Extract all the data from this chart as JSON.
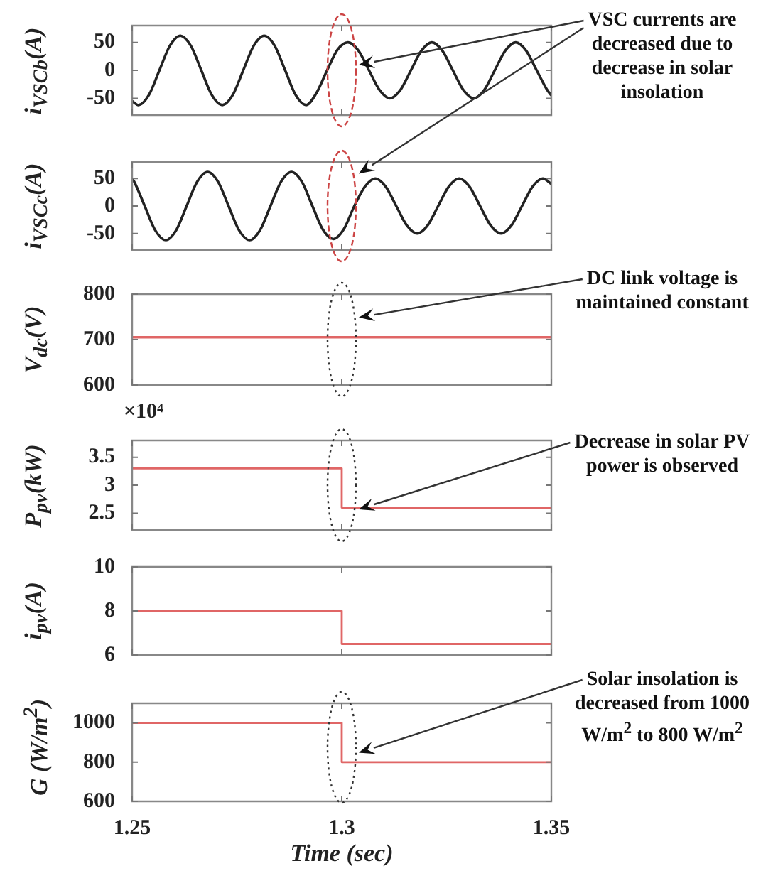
{
  "chart_data": [
    {
      "type": "line",
      "ylabel": "i$_{VSCb}$(A)",
      "xlim": [
        1.25,
        1.35
      ],
      "xticks": [
        1.25,
        1.3,
        1.35
      ],
      "ylim": [
        -80,
        80
      ],
      "yticks": [
        -50,
        0,
        50
      ],
      "tick_labels": "y",
      "color": "#222222",
      "x": [
        1.25,
        1.2515,
        1.254,
        1.2565,
        1.259,
        1.2615,
        1.264,
        1.2665,
        1.269,
        1.2715,
        1.274,
        1.2765,
        1.279,
        1.2815,
        1.284,
        1.2865,
        1.289,
        1.2915,
        1.294,
        1.2965,
        1.299,
        1.3015,
        1.304,
        1.3065,
        1.309,
        1.3115,
        1.314,
        1.3165,
        1.319,
        1.3215,
        1.324,
        1.3265,
        1.329,
        1.3315,
        1.334,
        1.3365,
        1.339,
        1.3415,
        1.344,
        1.3465,
        1.349,
        1.35
      ],
      "values": [
        -55,
        -62,
        -44,
        0,
        44,
        62,
        44,
        0,
        -44,
        -62,
        -44,
        0,
        44,
        62,
        44,
        0,
        -44,
        -62,
        -40,
        0,
        37,
        50,
        35,
        0,
        -35,
        -50,
        -35,
        0,
        35,
        50,
        35,
        0,
        -35,
        -50,
        -35,
        0,
        35,
        50,
        35,
        0,
        -35,
        -45
      ],
      "annotations": [
        "VSC currents are decreased due to decrease in solar insolation"
      ]
    },
    {
      "type": "line",
      "ylabel": "i$_{VSCc}$(A)",
      "xlim": [
        1.25,
        1.35
      ],
      "xticks": [
        1.25,
        1.3,
        1.35
      ],
      "ylim": [
        -80,
        80
      ],
      "yticks": [
        -50,
        0,
        50
      ],
      "tick_labels": "y",
      "color": "#222222",
      "x": [
        1.25,
        1.2505,
        1.253,
        1.2555,
        1.258,
        1.2605,
        1.263,
        1.2655,
        1.268,
        1.2705,
        1.273,
        1.2755,
        1.278,
        1.2805,
        1.283,
        1.2855,
        1.288,
        1.2905,
        1.293,
        1.2955,
        1.298,
        1.3005,
        1.303,
        1.3055,
        1.308,
        1.3105,
        1.313,
        1.3155,
        1.318,
        1.3205,
        1.323,
        1.3255,
        1.328,
        1.3305,
        1.333,
        1.3355,
        1.338,
        1.3405,
        1.343,
        1.3455,
        1.348,
        1.35
      ],
      "values": [
        50,
        44,
        0,
        -44,
        -62,
        -44,
        0,
        44,
        62,
        44,
        0,
        -44,
        -62,
        -44,
        0,
        44,
        62,
        44,
        0,
        -43,
        -60,
        -42,
        0,
        35,
        50,
        35,
        0,
        -35,
        -50,
        -35,
        0,
        35,
        50,
        35,
        0,
        -35,
        -50,
        -35,
        0,
        35,
        50,
        40
      ]
    },
    {
      "type": "line",
      "ylabel": "V$_{dc}$(V)",
      "xlim": [
        1.25,
        1.35
      ],
      "xticks": [
        1.25,
        1.3,
        1.35
      ],
      "ylim": [
        600,
        800
      ],
      "yticks": [
        600,
        700,
        800
      ],
      "tick_labels": "y",
      "color": "#e06666",
      "x": [
        1.25,
        1.35
      ],
      "values": [
        705,
        705
      ],
      "annotations": [
        "DC link voltage is maintained constant"
      ]
    },
    {
      "type": "step",
      "ylabel": "P$_{pv}$(kW)",
      "xlim": [
        1.25,
        1.35
      ],
      "xticks": [
        1.25,
        1.3,
        1.35
      ],
      "ylim": [
        2.2,
        3.8
      ],
      "yticks": [
        2.5,
        3,
        3.5
      ],
      "tick_labels": "y",
      "color": "#e06666",
      "x": [
        1.25,
        1.3,
        1.35
      ],
      "values": [
        3.3,
        2.6,
        2.6
      ],
      "annotations": [
        "×10⁴",
        "Decrease in solar PV power is observed"
      ]
    },
    {
      "type": "step",
      "ylabel": "i$_{pv}$(A)",
      "xlim": [
        1.25,
        1.35
      ],
      "xticks": [
        1.25,
        1.3,
        1.35
      ],
      "ylim": [
        6,
        10
      ],
      "yticks": [
        6,
        8,
        10
      ],
      "tick_labels": "y",
      "color": "#e06666",
      "x": [
        1.25,
        1.3,
        1.35
      ],
      "values": [
        8,
        6.5,
        6.5
      ]
    },
    {
      "type": "step",
      "ylabel": "G (W/m$^{2}$)",
      "xlabel": "Time (sec)",
      "xlim": [
        1.25,
        1.35
      ],
      "xticks": [
        1.25,
        1.3,
        1.35
      ],
      "ylim": [
        600,
        1100
      ],
      "yticks": [
        600,
        800,
        1000
      ],
      "color": "#e06666",
      "x": [
        1.25,
        1.3,
        1.35
      ],
      "values": [
        1000,
        800,
        800
      ],
      "annotations": [
        "Solar insolation is decreased from 1000 W/m$^{2}$ to 800 W/m$^{2}$"
      ]
    }
  ]
}
